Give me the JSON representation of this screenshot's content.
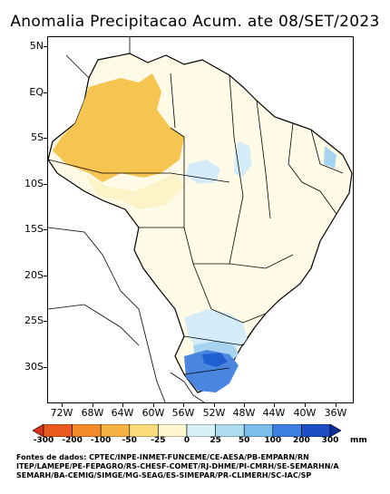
{
  "title": "Anomalia Precipitacao Acum. ate 08/SET/2023",
  "map": {
    "lat_labels": [
      "5N",
      "EQ",
      "5S",
      "10S",
      "15S",
      "20S",
      "25S",
      "30S"
    ],
    "lon_labels": [
      "72W",
      "68W",
      "64W",
      "60W",
      "56W",
      "52W",
      "48W",
      "44W",
      "40W",
      "36W"
    ],
    "colors": {
      "ocean": "#ffffff",
      "dry_strong": "#f5c451",
      "dry_weak": "#fdf3c9",
      "neutral": "#fffbe6",
      "wet_weak": "#d4ecf7",
      "wet_medium": "#a6d3ef",
      "wet_strong": "#4a86e0",
      "wet_very_strong": "#1f5fd0"
    }
  },
  "legend": {
    "labels": [
      "-300",
      "-200",
      "-100",
      "-50",
      "-25",
      "0",
      "25",
      "50",
      "100",
      "200",
      "300"
    ],
    "colors": [
      "#d9331a",
      "#ea5a1e",
      "#f28a2a",
      "#f6b245",
      "#fadd7a",
      "#fff6cf",
      "#d7f0f8",
      "#aedcf1",
      "#7cbdea",
      "#3d7fe0",
      "#1d4fc4",
      "#0a2e9c"
    ],
    "unit": "mm"
  },
  "sources": {
    "line1": "Fontes de dados: CPTEC/INPE-INMET-FUNCEME/CE-AESA/PB-EMPARN/RN",
    "line2": "ITEP/LAMEPE/PE-FEPAGRO/RS-CHESF-COMET/RJ-DHME/PI-CMRH/SE-SEMARHN/A",
    "line3": "SEMARH/BA-CEMIG/SIMGE/MG-SEAG/ES-SIMEPAR/PR-CLIMERH/SC-IAC/SP"
  }
}
